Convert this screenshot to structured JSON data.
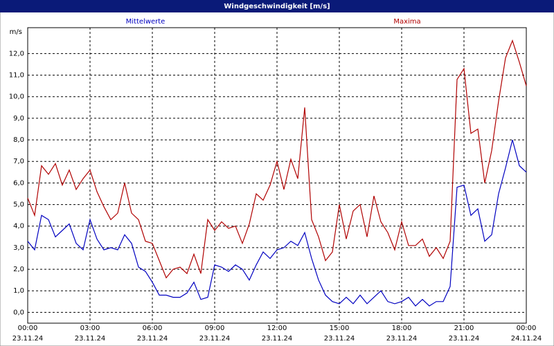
{
  "chart_data": {
    "type": "line",
    "title": "Windgeschwindigkeit [m/s]",
    "y_unit": "m/s",
    "x": [
      0,
      20,
      40,
      60,
      80,
      100,
      120,
      140,
      160,
      180,
      200,
      220,
      240,
      260,
      280,
      300,
      320,
      340,
      360,
      380,
      400,
      420,
      440,
      460,
      480,
      500,
      520,
      540,
      560,
      580,
      600,
      620,
      640,
      660,
      680,
      700,
      720,
      740,
      760,
      780,
      800,
      820,
      840,
      860,
      880,
      900,
      920,
      940,
      960,
      980,
      1000,
      1020,
      1040,
      1060,
      1080,
      1100,
      1120,
      1140,
      1160,
      1180,
      1200,
      1220,
      1240,
      1260,
      1280,
      1300,
      1320,
      1340,
      1360,
      1380,
      1400,
      1420,
      1440
    ],
    "series": [
      {
        "name": "Mittelwerte",
        "color": "#0000c0",
        "values": [
          3.3,
          2.9,
          4.5,
          4.3,
          3.5,
          3.8,
          4.1,
          3.2,
          2.9,
          4.3,
          3.4,
          2.9,
          3.0,
          2.9,
          3.6,
          3.2,
          2.1,
          1.9,
          1.4,
          0.8,
          0.8,
          0.7,
          0.7,
          0.9,
          1.4,
          0.6,
          0.7,
          2.2,
          2.1,
          1.9,
          2.2,
          2.0,
          1.5,
          2.2,
          2.8,
          2.5,
          2.9,
          3.0,
          3.3,
          3.1,
          3.7,
          2.5,
          1.5,
          0.8,
          0.5,
          0.4,
          0.7,
          0.4,
          0.8,
          0.4,
          0.7,
          1.0,
          0.5,
          0.4,
          0.5,
          0.7,
          0.3,
          0.6,
          0.3,
          0.5,
          0.5,
          1.2,
          5.8,
          5.9,
          4.5,
          4.8,
          3.3,
          3.6,
          5.5,
          6.7,
          8.0,
          6.8,
          6.5
        ]
      },
      {
        "name": "Maxima",
        "color": "#b00000",
        "values": [
          5.3,
          4.5,
          6.8,
          6.4,
          6.9,
          5.9,
          6.6,
          5.7,
          6.2,
          6.6,
          5.6,
          4.9,
          4.3,
          4.6,
          6.0,
          4.6,
          4.3,
          3.3,
          3.2,
          2.4,
          1.6,
          2.0,
          2.1,
          1.8,
          2.7,
          1.8,
          4.3,
          3.8,
          4.2,
          3.9,
          4.0,
          3.2,
          4.1,
          5.5,
          5.2,
          5.9,
          7.0,
          5.7,
          7.1,
          6.2,
          9.5,
          4.3,
          3.5,
          2.4,
          2.8,
          5.0,
          3.4,
          4.7,
          5.0,
          3.5,
          5.4,
          4.2,
          3.7,
          2.9,
          4.2,
          3.1,
          3.1,
          3.4,
          2.6,
          3.0,
          2.5,
          3.3,
          10.8,
          11.3,
          8.3,
          8.5,
          6.0,
          7.5,
          9.8,
          11.8,
          12.6,
          11.6,
          10.5
        ]
      }
    ],
    "xlim": [
      0,
      1440
    ],
    "xticks": [
      {
        "value": 0,
        "label": "00:00",
        "date": "23.11.24"
      },
      {
        "value": 180,
        "label": "03:00",
        "date": "23.11.24"
      },
      {
        "value": 360,
        "label": "06:00",
        "date": "23.11.24"
      },
      {
        "value": 540,
        "label": "09:00",
        "date": "23.11.24"
      },
      {
        "value": 720,
        "label": "12:00",
        "date": "23.11.24"
      },
      {
        "value": 900,
        "label": "15:00",
        "date": "23.11.24"
      },
      {
        "value": 1080,
        "label": "18:00",
        "date": "23.11.24"
      },
      {
        "value": 1260,
        "label": "21:00",
        "date": "23.11.24"
      },
      {
        "value": 1440,
        "label": "00:00",
        "date": "24.11.24"
      }
    ],
    "ylim": [
      -0.5,
      13.2
    ],
    "yticks": [
      {
        "value": 0,
        "label": "0,0"
      },
      {
        "value": 1,
        "label": "1,0"
      },
      {
        "value": 2,
        "label": "2,0"
      },
      {
        "value": 3,
        "label": "3,0"
      },
      {
        "value": 4,
        "label": "4,0"
      },
      {
        "value": 5,
        "label": "5,0"
      },
      {
        "value": 6,
        "label": "6,0"
      },
      {
        "value": 7,
        "label": "7,0"
      },
      {
        "value": 8,
        "label": "8,0"
      },
      {
        "value": 9,
        "label": "9,0"
      },
      {
        "value": 10,
        "label": "10,0"
      },
      {
        "value": 11,
        "label": "11,0"
      },
      {
        "value": 12,
        "label": "12,0"
      }
    ],
    "grid": true
  }
}
